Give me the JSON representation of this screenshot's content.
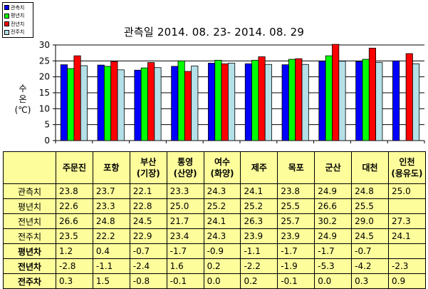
{
  "chart_data": {
    "type": "bar",
    "title": "관측일 2014. 08. 23-  2014. 08. 29",
    "ylabel_lines": [
      "수",
      "온",
      "(℃)"
    ],
    "ylim": [
      0,
      30
    ],
    "yticks": [
      "0",
      "5",
      "10",
      "15",
      "20",
      "25",
      "30"
    ],
    "grid": true,
    "legend_position": "top-left",
    "categories": [
      "주문진",
      "포항",
      "부산\n(기장)",
      "통영\n(산양)",
      "여수\n(화양)",
      "제주",
      "목포",
      "군산",
      "대천",
      "인천\n(용유도)"
    ],
    "series": [
      {
        "name": "관측치",
        "color": "#0000ff",
        "values": [
          23.8,
          23.7,
          22.1,
          23.3,
          24.3,
          24.1,
          23.8,
          24.9,
          24.8,
          25.0
        ]
      },
      {
        "name": "평년치",
        "color": "#00ff00",
        "values": [
          22.6,
          23.3,
          22.8,
          25.0,
          25.2,
          25.2,
          25.5,
          26.6,
          25.5,
          null
        ]
      },
      {
        "name": "전년치",
        "color": "#ff0000",
        "values": [
          26.6,
          24.8,
          24.5,
          21.7,
          24.1,
          26.3,
          25.7,
          30.2,
          29.0,
          27.3
        ]
      },
      {
        "name": "전주치",
        "color": "#b4e0e8",
        "values": [
          23.5,
          22.2,
          22.9,
          23.4,
          24.3,
          23.9,
          23.9,
          24.9,
          24.5,
          24.1
        ]
      }
    ]
  },
  "table": {
    "header": [
      {
        "lines": [
          "주문진"
        ]
      },
      {
        "lines": [
          "포항"
        ]
      },
      {
        "lines": [
          "부산",
          "(기장)"
        ]
      },
      {
        "lines": [
          "통영",
          "(산양)"
        ]
      },
      {
        "lines": [
          "여수",
          "(화양)"
        ]
      },
      {
        "lines": [
          "제주"
        ]
      },
      {
        "lines": [
          "목포"
        ]
      },
      {
        "lines": [
          "군산"
        ]
      },
      {
        "lines": [
          "대천"
        ]
      },
      {
        "lines": [
          "인천",
          "(용유도)"
        ]
      }
    ],
    "rows": [
      {
        "label": "관측치",
        "bold": false,
        "values": [
          "23.8",
          "23.7",
          "22.1",
          "23.3",
          "24.3",
          "24.1",
          "23.8",
          "24.9",
          "24.8",
          "25.0"
        ]
      },
      {
        "label": "평년치",
        "bold": false,
        "values": [
          "22.6",
          "23.3",
          "22.8",
          "25.0",
          "25.2",
          "25.2",
          "25.5",
          "26.6",
          "25.5",
          ""
        ]
      },
      {
        "label": "전년치",
        "bold": false,
        "values": [
          "26.6",
          "24.8",
          "24.5",
          "21.7",
          "24.1",
          "26.3",
          "25.7",
          "30.2",
          "29.0",
          "27.3"
        ]
      },
      {
        "label": "전주치",
        "bold": false,
        "values": [
          "23.5",
          "22.2",
          "22.9",
          "23.4",
          "24.3",
          "23.9",
          "23.9",
          "24.9",
          "24.5",
          "24.1"
        ]
      },
      {
        "label": "평년차",
        "bold": true,
        "values": [
          "1.2",
          "0.4",
          "-0.7",
          "-1.7",
          "-0.9",
          "-1.1",
          "-1.7",
          "-1.7",
          "-0.7",
          ""
        ]
      },
      {
        "label": "전년차",
        "bold": true,
        "values": [
          "-2.8",
          "-1.1",
          "-2.4",
          "1.6",
          "0.2",
          "-2.2",
          "-1.9",
          "-5.3",
          "-4.2",
          "-2.3"
        ]
      },
      {
        "label": "전주차",
        "bold": true,
        "values": [
          "0.3",
          "1.5",
          "-0.8",
          "-0.1",
          "0.0",
          "0.2",
          "-0.1",
          "0.0",
          "0.3",
          "0.9"
        ]
      }
    ]
  }
}
